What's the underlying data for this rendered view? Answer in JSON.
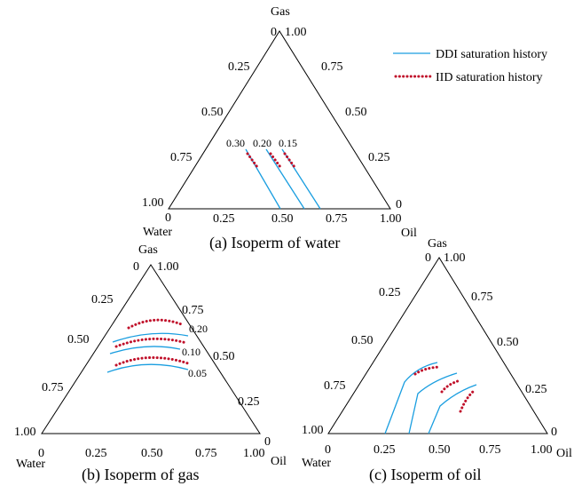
{
  "legend": {
    "ddi_label": "DDI saturation history",
    "iid_label": "IID saturation history",
    "ddi_color": "#1a9ee0",
    "iid_color": "#c0102a"
  },
  "panels": [
    {
      "id": "a",
      "caption": "(a) Isoperm of water",
      "apex_labels": {
        "top": "Gas",
        "left": "Water",
        "right": "Oil"
      },
      "left_edge_ticks": [
        "0",
        "0.25",
        "0.50",
        "0.75",
        "1.00"
      ],
      "right_edge_ticks": [
        "1.00",
        "0.75",
        "0.50",
        "0.25",
        "0"
      ],
      "bottom_edge_ticks": [
        "0",
        "0.25",
        "0.50",
        "0.75",
        "1.00"
      ],
      "isoperm_labels": [
        "0.30",
        "0.20",
        "0.15"
      ]
    },
    {
      "id": "b",
      "caption": "(b) Isoperm of gas",
      "apex_labels": {
        "top": "Gas",
        "left": "Water",
        "right": "Oil"
      },
      "left_edge_ticks": [
        "0",
        "0.25",
        "0.50",
        "0.75",
        "1.00"
      ],
      "right_edge_ticks": [
        "1.00",
        "0.75",
        "0.50",
        "0.25",
        "0"
      ],
      "bottom_edge_ticks": [
        "0",
        "0.25",
        "0.50",
        "0.75",
        "1.00"
      ],
      "isoperm_labels": [
        "0.20",
        "0.10",
        "0.05"
      ]
    },
    {
      "id": "c",
      "caption": "(c) Isoperm of oil",
      "apex_labels": {
        "top": "Gas",
        "left": "Water",
        "right": "Oil"
      },
      "left_edge_ticks": [
        "0",
        "0.25",
        "0.50",
        "0.75",
        "1.00"
      ],
      "right_edge_ticks": [
        "1.00",
        "0.75",
        "0.50",
        "0.25",
        "0"
      ],
      "bottom_edge_ticks": [
        "0",
        "0.25",
        "0.50",
        "0.75",
        "1.00"
      ],
      "isoperm_labels": []
    }
  ]
}
